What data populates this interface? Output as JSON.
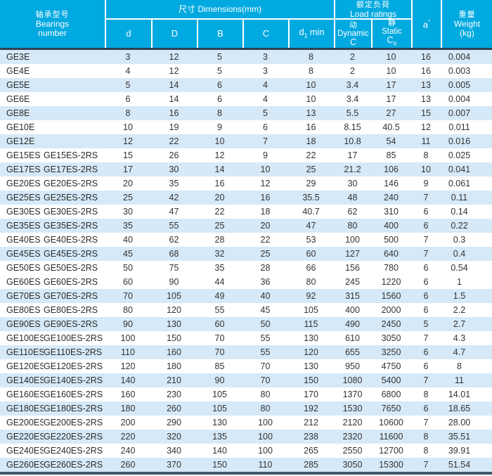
{
  "colors": {
    "header_bg": "#00a9e0",
    "header_text": "#ffffff",
    "row_shaded": "#d6e9f8",
    "row_plain": "#ffffff",
    "divider": "#2e4154",
    "body_text": "#333333"
  },
  "header": {
    "bearing_zh": "轴承型号",
    "bearing_en1": "Bearings",
    "bearing_en2": "number",
    "dims_label": "尺寸  Dimensions(mm)",
    "col_d": "d",
    "col_D": "D",
    "col_B": "B",
    "col_C": "C",
    "d1_base": "d",
    "d1_sub": "1",
    "d1_rest": "min",
    "load_zh": "额定负荷",
    "load_en": "Load ratings",
    "dyn_zh": "动",
    "dyn_en": "Dynamic",
    "dyn_sym": "C",
    "stat_zh": "静",
    "stat_en": "Static",
    "stat_sym": "C",
    "stat_sub": "o",
    "a_base": "a",
    "a_sup": "°",
    "weight_zh": "重量",
    "weight_en": "Weight",
    "weight_unit": "(kg)"
  },
  "table": {
    "rows": [
      {
        "model": "GE3E",
        "model2": "",
        "d": "3",
        "D": "12",
        "B": "5",
        "C": "3",
        "d1_min": "8",
        "dynamic_C": "2",
        "static_Co": "10",
        "a_deg": "16",
        "weight_kg": "0.004",
        "shaded": true
      },
      {
        "model": "GE4E",
        "model2": "",
        "d": "4",
        "D": "12",
        "B": "5",
        "C": "3",
        "d1_min": "8",
        "dynamic_C": "2",
        "static_Co": "10",
        "a_deg": "16",
        "weight_kg": "0.003",
        "shaded": false
      },
      {
        "model": "GE5E",
        "model2": "",
        "d": "5",
        "D": "14",
        "B": "6",
        "C": "4",
        "d1_min": "10",
        "dynamic_C": "3.4",
        "static_Co": "17",
        "a_deg": "13",
        "weight_kg": "0.005",
        "shaded": true
      },
      {
        "model": "GE6E",
        "model2": "",
        "d": "6",
        "D": "14",
        "B": "6",
        "C": "4",
        "d1_min": "10",
        "dynamic_C": "3.4",
        "static_Co": "17",
        "a_deg": "13",
        "weight_kg": "0.004",
        "shaded": false
      },
      {
        "model": "GE8E",
        "model2": "",
        "d": "8",
        "D": "16",
        "B": "8",
        "C": "5",
        "d1_min": "13",
        "dynamic_C": "5.5",
        "static_Co": "27",
        "a_deg": "15",
        "weight_kg": "0.007",
        "shaded": true
      },
      {
        "model": "GE10E",
        "model2": "",
        "d": "10",
        "D": "19",
        "B": "9",
        "C": "6",
        "d1_min": "16",
        "dynamic_C": "8.15",
        "static_Co": "40.5",
        "a_deg": "12",
        "weight_kg": "0.011",
        "shaded": false
      },
      {
        "model": "GE12E",
        "model2": "",
        "d": "12",
        "D": "22",
        "B": "10",
        "C": "7",
        "d1_min": "18",
        "dynamic_C": "10.8",
        "static_Co": "54",
        "a_deg": "11",
        "weight_kg": "0.016",
        "shaded": true
      },
      {
        "model": "GE15ES",
        "model2": "GE15ES-2RS",
        "d": "15",
        "D": "26",
        "B": "12",
        "C": "9",
        "d1_min": "22",
        "dynamic_C": "17",
        "static_Co": "85",
        "a_deg": "8",
        "weight_kg": "0.025",
        "shaded": false
      },
      {
        "model": "GE17ES",
        "model2": "GE17ES-2RS",
        "d": "17",
        "D": "30",
        "B": "14",
        "C": "10",
        "d1_min": "25",
        "dynamic_C": "21.2",
        "static_Co": "106",
        "a_deg": "10",
        "weight_kg": "0.041",
        "shaded": true
      },
      {
        "model": "GE20ES",
        "model2": "GE20ES-2RS",
        "d": "20",
        "D": "35",
        "B": "16",
        "C": "12",
        "d1_min": "29",
        "dynamic_C": "30",
        "static_Co": "146",
        "a_deg": "9",
        "weight_kg": "0.061",
        "shaded": false
      },
      {
        "model": "GE25ES",
        "model2": "GE25ES-2RS",
        "d": "25",
        "D": "42",
        "B": "20",
        "C": "16",
        "d1_min": "35.5",
        "dynamic_C": "48",
        "static_Co": "240",
        "a_deg": "7",
        "weight_kg": "0.11",
        "shaded": true
      },
      {
        "model": "GE30ES",
        "model2": "GE30ES-2RS",
        "d": "30",
        "D": "47",
        "B": "22",
        "C": "18",
        "d1_min": "40.7",
        "dynamic_C": "62",
        "static_Co": "310",
        "a_deg": "6",
        "weight_kg": "0.14",
        "shaded": false
      },
      {
        "model": "GE35ES",
        "model2": "GE35ES-2RS",
        "d": "35",
        "D": "55",
        "B": "25",
        "C": "20",
        "d1_min": "47",
        "dynamic_C": "80",
        "static_Co": "400",
        "a_deg": "6",
        "weight_kg": "0.22",
        "shaded": true
      },
      {
        "model": "GE40ES",
        "model2": "GE40ES-2RS",
        "d": "40",
        "D": "62",
        "B": "28",
        "C": "22",
        "d1_min": "53",
        "dynamic_C": "100",
        "static_Co": "500",
        "a_deg": "7",
        "weight_kg": "0.3",
        "shaded": false
      },
      {
        "model": "GE45ES",
        "model2": "GE45ES-2RS",
        "d": "45",
        "D": "68",
        "B": "32",
        "C": "25",
        "d1_min": "60",
        "dynamic_C": "127",
        "static_Co": "640",
        "a_deg": "7",
        "weight_kg": "0.4",
        "shaded": true
      },
      {
        "model": "GE50ES",
        "model2": "GE50ES-2RS",
        "d": "50",
        "D": "75",
        "B": "35",
        "C": "28",
        "d1_min": "66",
        "dynamic_C": "156",
        "static_Co": "780",
        "a_deg": "6",
        "weight_kg": "0.54",
        "shaded": false
      },
      {
        "model": "GE60ES",
        "model2": "GE60ES-2RS",
        "d": "60",
        "D": "90",
        "B": "44",
        "C": "36",
        "d1_min": "80",
        "dynamic_C": "245",
        "static_Co": "1220",
        "a_deg": "6",
        "weight_kg": "1",
        "shaded": false
      },
      {
        "model": "GE70ES",
        "model2": "GE70ES-2RS",
        "d": "70",
        "D": "105",
        "B": "49",
        "C": "40",
        "d1_min": "92",
        "dynamic_C": "315",
        "static_Co": "1560",
        "a_deg": "6",
        "weight_kg": "1.5",
        "shaded": true
      },
      {
        "model": "GE80ES",
        "model2": "GE80ES-2RS",
        "d": "80",
        "D": "120",
        "B": "55",
        "C": "45",
        "d1_min": "105",
        "dynamic_C": "400",
        "static_Co": "2000",
        "a_deg": "6",
        "weight_kg": "2.2",
        "shaded": false
      },
      {
        "model": "GE90ES",
        "model2": "GE90ES-2RS",
        "d": "90",
        "D": "130",
        "B": "60",
        "C": "50",
        "d1_min": "115",
        "dynamic_C": "490",
        "static_Co": "2450",
        "a_deg": "5",
        "weight_kg": "2.7",
        "shaded": true
      },
      {
        "model": "GE100ES",
        "model2": "GE100ES-2RS",
        "d": "100",
        "D": "150",
        "B": "70",
        "C": "55",
        "d1_min": "130",
        "dynamic_C": "610",
        "static_Co": "3050",
        "a_deg": "7",
        "weight_kg": "4.3",
        "shaded": false
      },
      {
        "model": "GE110ES",
        "model2": "GE110ES-2RS",
        "d": "110",
        "D": "160",
        "B": "70",
        "C": "55",
        "d1_min": "120",
        "dynamic_C": "655",
        "static_Co": "3250",
        "a_deg": "6",
        "weight_kg": "4.7",
        "shaded": true
      },
      {
        "model": "GE120ES",
        "model2": "GE120ES-2RS",
        "d": "120",
        "D": "180",
        "B": "85",
        "C": "70",
        "d1_min": "130",
        "dynamic_C": "950",
        "static_Co": "4750",
        "a_deg": "6",
        "weight_kg": "8",
        "shaded": false
      },
      {
        "model": "GE140ES",
        "model2": "GE140ES-2RS",
        "d": "140",
        "D": "210",
        "B": "90",
        "C": "70",
        "d1_min": "150",
        "dynamic_C": "1080",
        "static_Co": "5400",
        "a_deg": "7",
        "weight_kg": "11",
        "shaded": true
      },
      {
        "model": "GE160ES",
        "model2": "GE160ES-2RS",
        "d": "160",
        "D": "230",
        "B": "105",
        "C": "80",
        "d1_min": "170",
        "dynamic_C": "1370",
        "static_Co": "6800",
        "a_deg": "8",
        "weight_kg": "14.01",
        "shaded": false
      },
      {
        "model": "GE180ES",
        "model2": "GE180ES-2RS",
        "d": "180",
        "D": "260",
        "B": "105",
        "C": "80",
        "d1_min": "192",
        "dynamic_C": "1530",
        "static_Co": "7650",
        "a_deg": "6",
        "weight_kg": "18.65",
        "shaded": true
      },
      {
        "model": "GE200ES",
        "model2": "GE200ES-2RS",
        "d": "200",
        "D": "290",
        "B": "130",
        "C": "100",
        "d1_min": "212",
        "dynamic_C": "2120",
        "static_Co": "10600",
        "a_deg": "7",
        "weight_kg": "28.00",
        "shaded": false
      },
      {
        "model": "GE220ES",
        "model2": "GE220ES-2RS",
        "d": "220",
        "D": "320",
        "B": "135",
        "C": "100",
        "d1_min": "238",
        "dynamic_C": "2320",
        "static_Co": "11600",
        "a_deg": "8",
        "weight_kg": "35.51",
        "shaded": true
      },
      {
        "model": "GE240ES",
        "model2": "GE240ES-2RS",
        "d": "240",
        "D": "340",
        "B": "140",
        "C": "100",
        "d1_min": "265",
        "dynamic_C": "2550",
        "static_Co": "12700",
        "a_deg": "8",
        "weight_kg": "39.91",
        "shaded": false
      },
      {
        "model": "GE260ES",
        "model2": "GE260ES-2RS",
        "d": "260",
        "D": "370",
        "B": "150",
        "C": "110",
        "d1_min": "285",
        "dynamic_C": "3050",
        "static_Co": "15300",
        "a_deg": "7",
        "weight_kg": "51.54",
        "shaded": true
      }
    ]
  }
}
